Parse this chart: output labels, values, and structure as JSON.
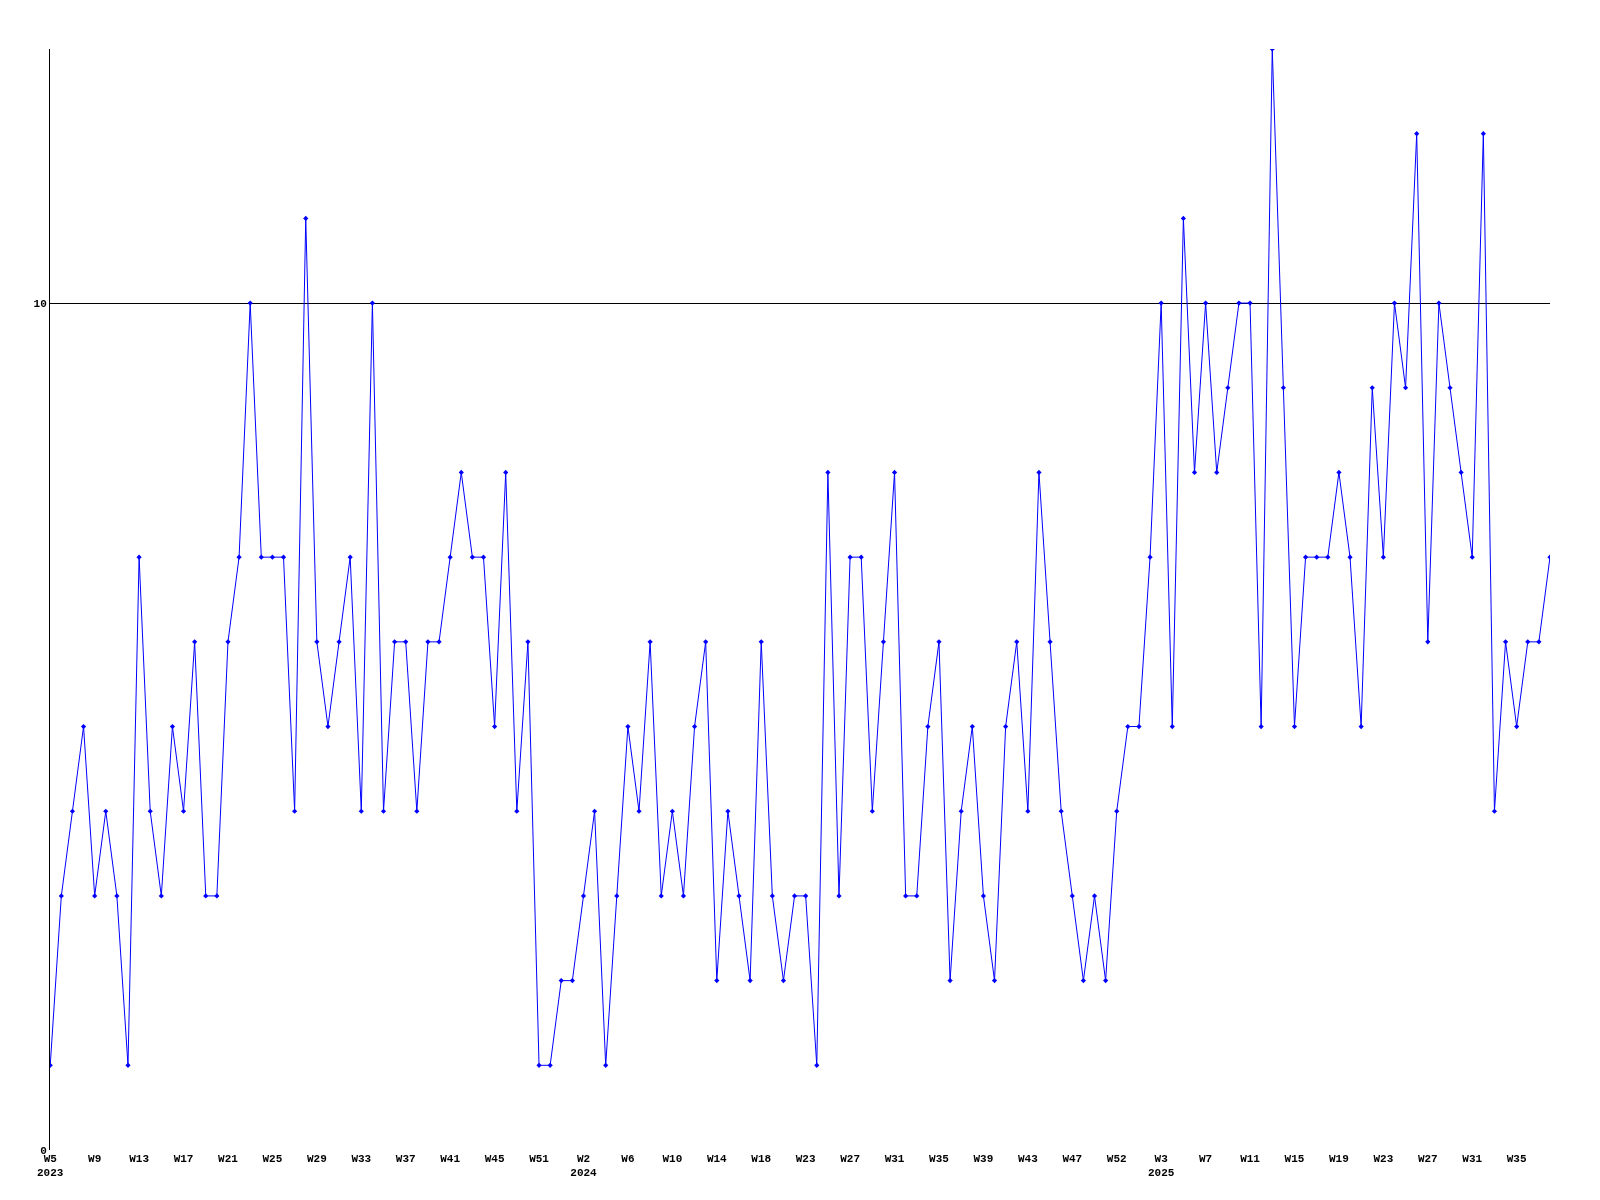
{
  "chart_data": {
    "type": "line",
    "categories": [
      "W5\n2023",
      null,
      null,
      null,
      "W9",
      null,
      null,
      null,
      "W13",
      null,
      null,
      null,
      "W17",
      null,
      null,
      null,
      "W21",
      null,
      null,
      null,
      "W25",
      null,
      null,
      null,
      "W29",
      null,
      null,
      null,
      "W33",
      null,
      null,
      null,
      "W37",
      null,
      null,
      null,
      "W41",
      null,
      null,
      null,
      "W45",
      null,
      null,
      null,
      "W51",
      null,
      null,
      null,
      "W2\n2024",
      null,
      null,
      null,
      "W6",
      null,
      null,
      null,
      "W10",
      null,
      null,
      null,
      "W14",
      null,
      null,
      null,
      "W18",
      null,
      null,
      null,
      "W23",
      null,
      null,
      null,
      "W27",
      null,
      null,
      null,
      "W31",
      null,
      null,
      null,
      "W35",
      null,
      null,
      null,
      "W39",
      null,
      null,
      null,
      "W43",
      null,
      null,
      null,
      "W47",
      null,
      null,
      null,
      "W52",
      null,
      null,
      null,
      "W3\n2025",
      null,
      null,
      null,
      "W7",
      null,
      null,
      null,
      "W11",
      null,
      null,
      null,
      "W15",
      null,
      null,
      null,
      "W19",
      null,
      null,
      null,
      "W23",
      null,
      null,
      null,
      "W27",
      null,
      null,
      null,
      "W31",
      null,
      null,
      null,
      "W35",
      null,
      null,
      null
    ],
    "series": [
      {
        "color": "#0000ff",
        "values": [
          1,
          3,
          4,
          5,
          3,
          4,
          3,
          1,
          7,
          4,
          3,
          5,
          4,
          6,
          3,
          3,
          6,
          7,
          10,
          7,
          7,
          7,
          4,
          11,
          6,
          5,
          6,
          7,
          4,
          10,
          4,
          6,
          6,
          4,
          6,
          6,
          7,
          8,
          7,
          7,
          5,
          8,
          4,
          6,
          1,
          1,
          2,
          2,
          3,
          4,
          1,
          3,
          5,
          4,
          6,
          3,
          4,
          3,
          5,
          6,
          2,
          4,
          3,
          2,
          6,
          3,
          2,
          3,
          3,
          1,
          8,
          3,
          7,
          7,
          4,
          6,
          8,
          3,
          3,
          5,
          6,
          2,
          4,
          5,
          3,
          2,
          5,
          6,
          4,
          8,
          6,
          4,
          3,
          2,
          3,
          2,
          4,
          5,
          5,
          7,
          10,
          5,
          11,
          8,
          10,
          8,
          9,
          10,
          10,
          5,
          13,
          9,
          5,
          7,
          7,
          7,
          8,
          7,
          5,
          9,
          7,
          10,
          9,
          12,
          6,
          10,
          9,
          8,
          7,
          12,
          4,
          6,
          5,
          6,
          6,
          7
        ]
      }
    ],
    "ylim": [
      0,
      13
    ],
    "yticks": [
      0,
      10
    ],
    "grid": "y",
    "marker": "diamond",
    "line_style": "solid",
    "legend": false
  }
}
